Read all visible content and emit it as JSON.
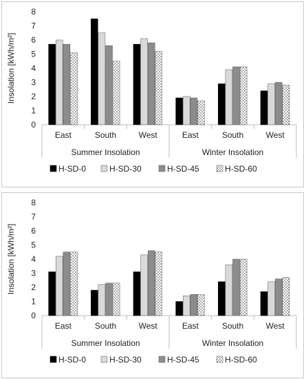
{
  "colors": {
    "axis": "#bfbfbf",
    "grid": "#d9d9d9",
    "text": "#222222",
    "series": [
      "#000000",
      "#d9d9d9",
      "#8c8c8c",
      "dotted-white"
    ]
  },
  "chart_data": [
    {
      "type": "bar",
      "title": "",
      "ylabel": "Insolation [kWh/m²]",
      "ylim": [
        0,
        8
      ],
      "yticks": [
        "0",
        "1",
        "2",
        "3",
        "4",
        "5",
        "6",
        "7",
        "8"
      ],
      "grid": false,
      "legend": "bottom",
      "groups": [
        {
          "label": "Summer Insolation",
          "categories": [
            "East",
            "South",
            "West"
          ]
        },
        {
          "label": "Winter Insolation",
          "categories": [
            "East",
            "South",
            "West"
          ]
        }
      ],
      "series": [
        {
          "name": "H-SD-0",
          "values": [
            5.7,
            7.5,
            5.7,
            1.9,
            2.9,
            2.4
          ]
        },
        {
          "name": "H-SD-30",
          "values": [
            6.0,
            6.5,
            6.1,
            2.0,
            3.9,
            2.9
          ]
        },
        {
          "name": "H-SD-45",
          "values": [
            5.7,
            5.6,
            5.8,
            1.9,
            4.1,
            3.0
          ]
        },
        {
          "name": "H-SD-60",
          "values": [
            5.1,
            4.5,
            5.2,
            1.7,
            4.1,
            2.8
          ]
        }
      ]
    },
    {
      "type": "bar",
      "title": "",
      "ylabel": "Insolation [kWh/m²]",
      "ylim": [
        0,
        8
      ],
      "yticks": [
        "0",
        "1",
        "2",
        "3",
        "4",
        "5",
        "6",
        "7",
        "8"
      ],
      "grid": false,
      "legend": "bottom",
      "groups": [
        {
          "label": "Summer Insolation",
          "categories": [
            "East",
            "South",
            "West"
          ]
        },
        {
          "label": "Winter Insolation",
          "categories": [
            "East",
            "South",
            "West"
          ]
        }
      ],
      "series": [
        {
          "name": "H-SD-0",
          "values": [
            3.1,
            1.8,
            3.1,
            1.0,
            2.4,
            1.7
          ]
        },
        {
          "name": "H-SD-30",
          "values": [
            4.2,
            2.2,
            4.3,
            1.4,
            3.6,
            2.4
          ]
        },
        {
          "name": "H-SD-45",
          "values": [
            4.5,
            2.3,
            4.6,
            1.5,
            4.0,
            2.6
          ]
        },
        {
          "name": "H-SD-60",
          "values": [
            4.5,
            2.3,
            4.5,
            1.5,
            4.0,
            2.7
          ]
        }
      ]
    }
  ]
}
